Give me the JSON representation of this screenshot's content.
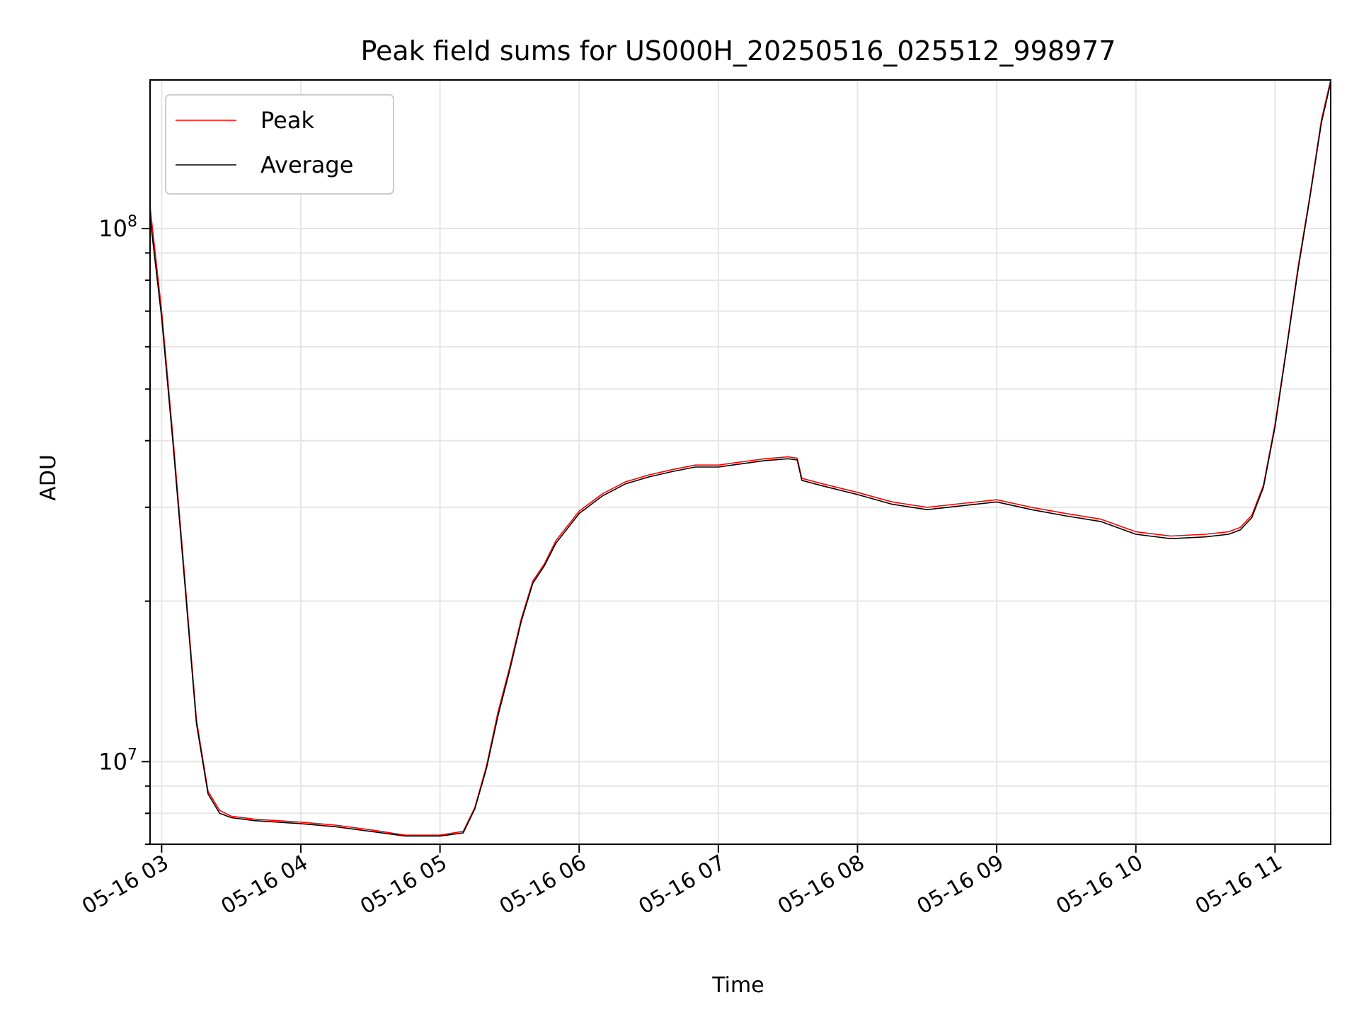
{
  "chart_data": {
    "type": "line",
    "title": "Peak field sums for US000H_20250516_025512_998977",
    "xlabel": "Time",
    "ylabel": "ADU",
    "y_scale": "log",
    "xlim": [
      "05-16 02:55",
      "05-16 11:24"
    ],
    "ylim": [
      7000000,
      190000000
    ],
    "x_ticks": [
      "05-16 03",
      "05-16 04",
      "05-16 05",
      "05-16 06",
      "05-16 07",
      "05-16 08",
      "05-16 09",
      "05-16 10",
      "05-16 11"
    ],
    "y_ticks": [
      {
        "label": "10",
        "exp": "7"
      },
      {
        "label": "10",
        "exp": "8"
      }
    ],
    "grid": true,
    "legend": {
      "position": "upper-left",
      "entries": [
        "Peak",
        "Average"
      ]
    },
    "series": [
      {
        "name": "Peak",
        "color": "#ff0000",
        "x": [
          "05-16 02:55",
          "05-16 03:00",
          "05-16 03:05",
          "05-16 03:10",
          "05-16 03:15",
          "05-16 03:20",
          "05-16 03:25",
          "05-16 03:30",
          "05-16 03:40",
          "05-16 03:50",
          "05-16 04:00",
          "05-16 04:15",
          "05-16 04:30",
          "05-16 04:45",
          "05-16 05:00",
          "05-16 05:10",
          "05-16 05:15",
          "05-16 05:20",
          "05-16 05:25",
          "05-16 05:30",
          "05-16 05:35",
          "05-16 05:40",
          "05-16 05:45",
          "05-16 05:50",
          "05-16 06:00",
          "05-16 06:10",
          "05-16 06:20",
          "05-16 06:30",
          "05-16 06:40",
          "05-16 06:50",
          "05-16 07:00",
          "05-16 07:10",
          "05-16 07:20",
          "05-16 07:30",
          "05-16 07:34",
          "05-16 07:36",
          "05-16 07:45",
          "05-16 08:00",
          "05-16 08:15",
          "05-16 08:30",
          "05-16 08:45",
          "05-16 09:00",
          "05-16 09:15",
          "05-16 09:30",
          "05-16 09:45",
          "05-16 10:00",
          "05-16 10:15",
          "05-16 10:30",
          "05-16 10:40",
          "05-16 10:45",
          "05-16 10:50",
          "05-16 10:55",
          "05-16 11:00",
          "05-16 11:05",
          "05-16 11:10",
          "05-16 11:15",
          "05-16 11:20",
          "05-16 11:24"
        ],
        "values": [
          110000000,
          70000000,
          40000000,
          22000000,
          12000000,
          8800000,
          8100000,
          7900000,
          7800000,
          7750000,
          7700000,
          7600000,
          7450000,
          7280000,
          7280000,
          7400000,
          8200000,
          9800000,
          12400000,
          15000000,
          18500000,
          21800000,
          23500000,
          26000000,
          29500000,
          31800000,
          33500000,
          34500000,
          35300000,
          36000000,
          36000000,
          36500000,
          37000000,
          37300000,
          37100000,
          34000000,
          33200000,
          32000000,
          30700000,
          30000000,
          30500000,
          31000000,
          30000000,
          29200000,
          28500000,
          27000000,
          26500000,
          26700000,
          27000000,
          27500000,
          29000000,
          33000000,
          43000000,
          60000000,
          85000000,
          115000000,
          160000000,
          190000000
        ]
      },
      {
        "name": "Average",
        "color": "#000000",
        "x": [
          "05-16 02:55",
          "05-16 03:00",
          "05-16 03:05",
          "05-16 03:10",
          "05-16 03:15",
          "05-16 03:20",
          "05-16 03:25",
          "05-16 03:30",
          "05-16 03:40",
          "05-16 03:50",
          "05-16 04:00",
          "05-16 04:15",
          "05-16 04:30",
          "05-16 04:45",
          "05-16 05:00",
          "05-16 05:10",
          "05-16 05:15",
          "05-16 05:20",
          "05-16 05:25",
          "05-16 05:30",
          "05-16 05:35",
          "05-16 05:40",
          "05-16 05:45",
          "05-16 05:50",
          "05-16 06:00",
          "05-16 06:10",
          "05-16 06:20",
          "05-16 06:30",
          "05-16 06:40",
          "05-16 06:50",
          "05-16 07:00",
          "05-16 07:10",
          "05-16 07:20",
          "05-16 07:30",
          "05-16 07:34",
          "05-16 07:36",
          "05-16 07:45",
          "05-16 08:00",
          "05-16 08:15",
          "05-16 08:30",
          "05-16 08:45",
          "05-16 09:00",
          "05-16 09:15",
          "05-16 09:30",
          "05-16 09:45",
          "05-16 10:00",
          "05-16 10:15",
          "05-16 10:30",
          "05-16 10:40",
          "05-16 10:45",
          "05-16 10:50",
          "05-16 10:55",
          "05-16 11:00",
          "05-16 11:05",
          "05-16 11:10",
          "05-16 11:15",
          "05-16 11:20",
          "05-16 11:24"
        ],
        "values": [
          105000000,
          68000000,
          39000000,
          21500000,
          11800000,
          8700000,
          8000000,
          7850000,
          7750000,
          7700000,
          7650000,
          7550000,
          7400000,
          7250000,
          7250000,
          7350000,
          8150000,
          9700000,
          12200000,
          14800000,
          18300000,
          21600000,
          23300000,
          25700000,
          29200000,
          31500000,
          33200000,
          34200000,
          35000000,
          35700000,
          35700000,
          36200000,
          36700000,
          37000000,
          36800000,
          33700000,
          32900000,
          31700000,
          30400000,
          29700000,
          30200000,
          30700000,
          29700000,
          28900000,
          28200000,
          26700000,
          26200000,
          26400000,
          26700000,
          27200000,
          28700000,
          32700000,
          42500000,
          59500000,
          84000000,
          114000000,
          158000000,
          188000000
        ]
      }
    ]
  }
}
